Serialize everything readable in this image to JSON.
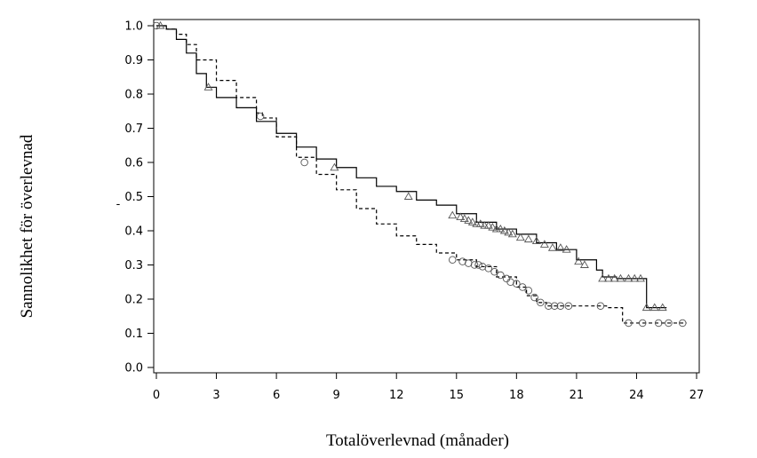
{
  "chart_data": {
    "type": "line",
    "xlabel": "Totalöverlevnad (månader)",
    "ylabel": "Sannolikhet för överlevnad",
    "stray_mark": "-",
    "xlim": [
      0,
      27
    ],
    "ylim": [
      0,
      1.0
    ],
    "x_ticks": [
      "0",
      "3",
      "6",
      "9",
      "12",
      "15",
      "18",
      "21",
      "24",
      "27"
    ],
    "y_ticks": [
      "0.0",
      "0.1",
      "0.2",
      "0.3",
      "0.4",
      "0.5",
      "0.6",
      "0.7",
      "0.8",
      "0.9",
      "1.0"
    ],
    "grid": false,
    "legend": "none",
    "series": [
      {
        "style": "solid",
        "marker": "triangle",
        "x": [
          0,
          0.5,
          1.0,
          1.5,
          2.0,
          2.5,
          3.0,
          4.0,
          5.0,
          6.0,
          7.0,
          8.0,
          9.0,
          10.0,
          11.0,
          12.0,
          13.0,
          14.0,
          15.0,
          16.0,
          17.0,
          18.0,
          19.0,
          20.0,
          21.0,
          22.0,
          22.3,
          23.0,
          24.0,
          24.4,
          24.5,
          25.5
        ],
        "y": [
          1.0,
          0.99,
          0.96,
          0.92,
          0.86,
          0.82,
          0.79,
          0.76,
          0.72,
          0.685,
          0.645,
          0.61,
          0.585,
          0.555,
          0.53,
          0.515,
          0.49,
          0.475,
          0.45,
          0.425,
          0.405,
          0.39,
          0.365,
          0.345,
          0.315,
          0.285,
          0.265,
          0.26,
          0.26,
          0.26,
          0.175,
          0.175
        ],
        "censored_x": [
          0.2,
          2.6,
          8.9,
          12.6,
          14.8,
          15.2,
          15.4,
          15.6,
          15.8,
          16.0,
          16.2,
          16.4,
          16.6,
          16.8,
          17.0,
          17.2,
          17.4,
          17.6,
          17.8,
          18.2,
          18.6,
          19.0,
          19.4,
          19.8,
          20.2,
          20.5,
          21.1,
          21.4,
          22.3,
          22.6,
          22.9,
          23.2,
          23.6,
          23.9,
          24.2,
          24.5,
          24.9,
          25.3
        ],
        "censored_y": [
          1.0,
          0.82,
          0.585,
          0.5,
          0.445,
          0.44,
          0.435,
          0.43,
          0.425,
          0.42,
          0.42,
          0.415,
          0.415,
          0.41,
          0.405,
          0.405,
          0.4,
          0.395,
          0.39,
          0.38,
          0.375,
          0.37,
          0.36,
          0.35,
          0.35,
          0.345,
          0.31,
          0.3,
          0.26,
          0.26,
          0.26,
          0.26,
          0.26,
          0.26,
          0.26,
          0.175,
          0.175,
          0.175
        ]
      },
      {
        "style": "dashed",
        "marker": "circle",
        "x": [
          0,
          0.5,
          1.0,
          1.5,
          2.0,
          3.0,
          4.0,
          5.0,
          5.3,
          6.0,
          7.0,
          8.0,
          9.0,
          10.0,
          11.0,
          12.0,
          13.0,
          14.0,
          15.0,
          16.0,
          17.0,
          18.0,
          18.5,
          19.0,
          19.5,
          20.0,
          21.0,
          22.0,
          22.5,
          23.0,
          23.3,
          23.5,
          26.5
        ],
        "y": [
          1.0,
          0.99,
          0.975,
          0.945,
          0.9,
          0.84,
          0.79,
          0.745,
          0.73,
          0.675,
          0.615,
          0.565,
          0.52,
          0.465,
          0.42,
          0.385,
          0.36,
          0.335,
          0.315,
          0.295,
          0.265,
          0.235,
          0.21,
          0.19,
          0.18,
          0.18,
          0.18,
          0.18,
          0.175,
          0.175,
          0.13,
          0.13,
          0.13
        ],
        "censored_x": [
          0.0,
          5.2,
          7.4,
          14.8,
          15.3,
          15.6,
          15.9,
          16.1,
          16.3,
          16.6,
          16.9,
          17.2,
          17.5,
          17.7,
          18.0,
          18.3,
          18.6,
          18.9,
          19.2,
          19.6,
          19.9,
          20.2,
          20.6,
          22.2,
          23.6,
          24.3,
          25.1,
          25.6,
          26.3
        ],
        "censored_y": [
          1.0,
          0.735,
          0.6,
          0.315,
          0.31,
          0.305,
          0.3,
          0.3,
          0.295,
          0.29,
          0.28,
          0.27,
          0.26,
          0.25,
          0.245,
          0.235,
          0.225,
          0.205,
          0.19,
          0.18,
          0.18,
          0.18,
          0.18,
          0.18,
          0.13,
          0.13,
          0.13,
          0.13,
          0.13
        ]
      }
    ]
  }
}
